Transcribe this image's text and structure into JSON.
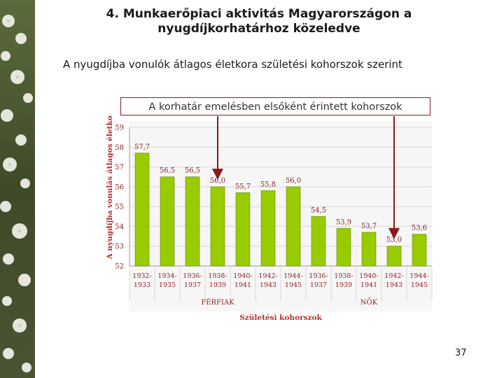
{
  "slide": {
    "title_line1": "4. Munkaerőpiaci aktivitás Magyarországon a",
    "title_line2": "nyugdíjkorhatárhoz közeledve",
    "subtitle": "A nyugdíjba vonulók átlagos életkora születési kohorszok szerint",
    "callout": "A korhatár emelésben elsőként érintett kohorszok",
    "page_number": "37"
  },
  "chart_data": {
    "type": "bar",
    "ylabel": "A nyugdíjba vonulás átlagos életkor",
    "xlabel": "Születési kohorszok",
    "ylim": [
      52,
      59
    ],
    "yticks": [
      "52",
      "53",
      "54",
      "55",
      "56",
      "57",
      "58",
      "59"
    ],
    "groups": [
      "FÉRFIAK",
      "NŐK"
    ],
    "categories": [
      [
        "1932-",
        "1933"
      ],
      [
        "1934-",
        "1935"
      ],
      [
        "1936-",
        "1937"
      ],
      [
        "1938-",
        "1939"
      ],
      [
        "1940-",
        "1941"
      ],
      [
        "1942-",
        "1943"
      ],
      [
        "1944-",
        "1945"
      ],
      [
        "1936-",
        "1937"
      ],
      [
        "1938-",
        "1939"
      ],
      [
        "1940-",
        "1941"
      ],
      [
        "1942-",
        "1943"
      ],
      [
        "1944-",
        "1945"
      ]
    ],
    "values": [
      57.7,
      56.5,
      56.5,
      56.0,
      55.7,
      55.8,
      56.0,
      54.5,
      53.9,
      53.7,
      53.0,
      53.6
    ],
    "value_labels": [
      "57,7",
      "56,5",
      "56,5",
      "56,0",
      "55,7",
      "55,8",
      "56,0",
      "54,5",
      "53,9",
      "53,7",
      "53,0",
      "53,6"
    ],
    "grid": true,
    "colors": {
      "bar": "#99cc00",
      "bar_edge": "#6f9a00",
      "arrow": "#8b1a1a",
      "axis_label": "#b03030"
    }
  }
}
